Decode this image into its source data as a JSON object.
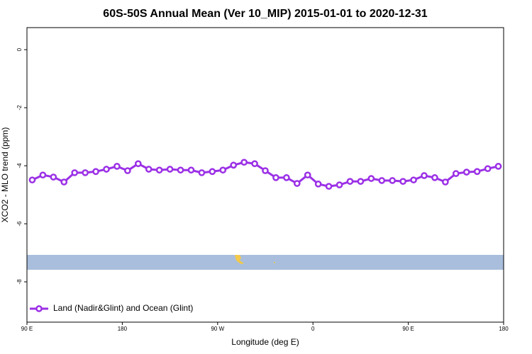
{
  "chart_data": {
    "type": "line",
    "title": "60S-50S Annual Mean (Ver 10_MIP)   2015-01-01 to 2020-12-31",
    "xlabel": "Longitude (deg E)",
    "ylabel": "XCO2 - MLO trend (ppm)",
    "x": [
      95,
      105,
      115,
      125,
      135,
      145,
      155,
      165,
      175,
      185,
      195,
      205,
      215,
      225,
      235,
      245,
      255,
      265,
      275,
      285,
      295,
      305,
      315,
      325,
      335,
      345,
      355,
      365,
      375,
      385,
      395,
      405,
      415,
      425,
      435,
      445,
      455,
      465,
      475,
      485,
      495,
      505,
      515,
      525,
      535
    ],
    "series": [
      {
        "name": "Land (Nadir&Glint) and Ocean (Glint)",
        "color": "#9b30e6",
        "values": [
          -4.49,
          -4.32,
          -4.39,
          -4.56,
          -4.24,
          -4.24,
          -4.2,
          -4.12,
          -4.02,
          -4.17,
          -3.93,
          -4.12,
          -4.15,
          -4.12,
          -4.15,
          -4.15,
          -4.24,
          -4.2,
          -4.15,
          -3.98,
          -3.88,
          -3.93,
          -4.17,
          -4.41,
          -4.41,
          -4.61,
          -4.32,
          -4.63,
          -4.71,
          -4.66,
          -4.54,
          -4.54,
          -4.44,
          -4.51,
          -4.51,
          -4.54,
          -4.49,
          -4.34,
          -4.41,
          -4.56,
          -4.27,
          -4.22,
          -4.2,
          -4.1,
          -4.02
        ]
      }
    ],
    "xlim": [
      90,
      540
    ],
    "xticks": [
      {
        "value": 90,
        "label": "90 E"
      },
      {
        "value": 180,
        "label": "180"
      },
      {
        "value": 270,
        "label": "90 W"
      },
      {
        "value": 360,
        "label": "0"
      },
      {
        "value": 450,
        "label": "90 E"
      },
      {
        "value": 540,
        "label": "180"
      }
    ],
    "ylim": [
      -9.39,
      0.76
    ],
    "yticks": [
      0,
      -2,
      -4,
      -6,
      -8
    ],
    "legend": "bottom-left"
  }
}
